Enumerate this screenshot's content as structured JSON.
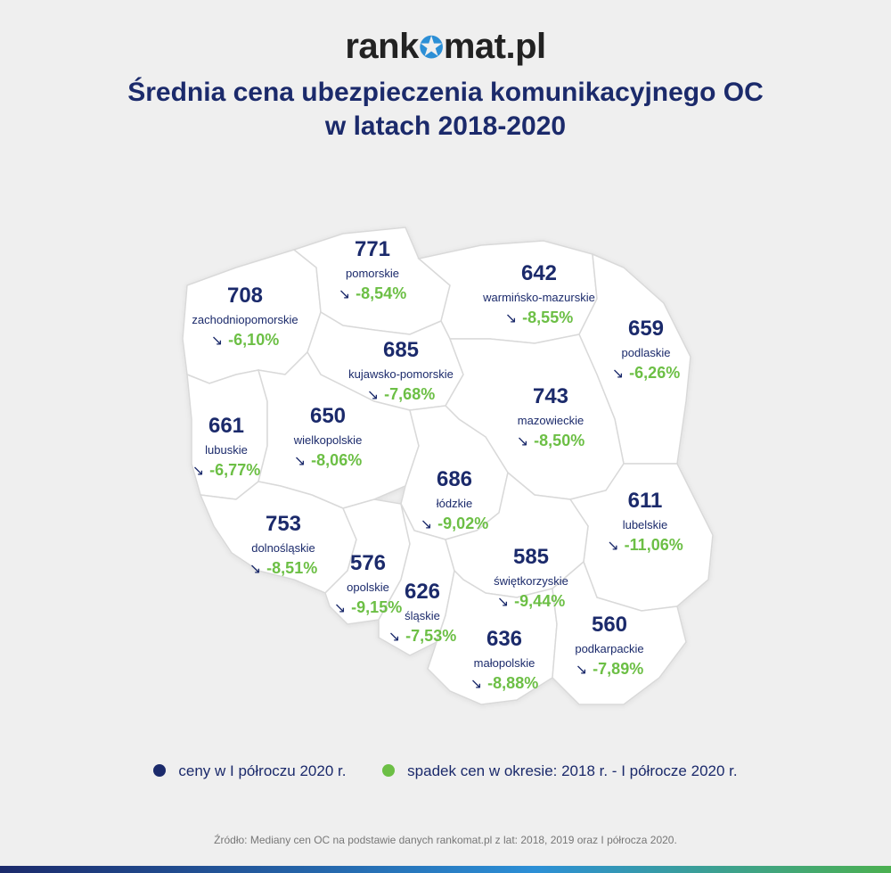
{
  "logo": {
    "part1": "rank",
    "part2": "mat.pl"
  },
  "title": {
    "line1": "Średnia cena ubezpieczenia komunikacyjnego OC",
    "line2": "w latach 2018-2020"
  },
  "colors": {
    "price": "#1b2a6b",
    "change": "#6cbf45",
    "map_fill": "#ffffff",
    "map_border": "#d9d9d9"
  },
  "regions": [
    {
      "name": "zachodniopomorskie",
      "price": "708",
      "change": "-6,10%"
    },
    {
      "name": "pomorskie",
      "price": "771",
      "change": "-8,54%"
    },
    {
      "name": "warmińsko-mazurskie",
      "price": "642",
      "change": "-8,55%"
    },
    {
      "name": "podlaskie",
      "price": "659",
      "change": "-6,26%"
    },
    {
      "name": "kujawsko-pomorskie",
      "price": "685",
      "change": "-7,68%"
    },
    {
      "name": "mazowieckie",
      "price": "743",
      "change": "-8,50%"
    },
    {
      "name": "lubuskie",
      "price": "661",
      "change": "-6,77%"
    },
    {
      "name": "wielkopolskie",
      "price": "650",
      "change": "-8,06%"
    },
    {
      "name": "łódzkie",
      "price": "686",
      "change": "-9,02%"
    },
    {
      "name": "lubelskie",
      "price": "611",
      "change": "-11,06%"
    },
    {
      "name": "dolnośląskie",
      "price": "753",
      "change": "-8,51%"
    },
    {
      "name": "opolskie",
      "price": "576",
      "change": "-9,15%"
    },
    {
      "name": "śląskie",
      "price": "626",
      "change": "-7,53%"
    },
    {
      "name": "świętkorzyskie",
      "price": "585",
      "change": "-9,44%"
    },
    {
      "name": "małopolskie",
      "price": "636",
      "change": "-8,88%"
    },
    {
      "name": "podkarpackie",
      "price": "560",
      "change": "-7,89%"
    }
  ],
  "legend": {
    "prices": {
      "label": "ceny w I półroczu 2020 r.",
      "color": "#1b2a6b"
    },
    "decline": {
      "label": "spadek cen w okresie: 2018 r. - I półrocze 2020 r.",
      "color": "#6cbf45"
    }
  },
  "source": "Źródło: Mediany cen OC na podstawie danych rankomat.pl z lat: 2018, 2019 oraz I półrocza 2020."
}
